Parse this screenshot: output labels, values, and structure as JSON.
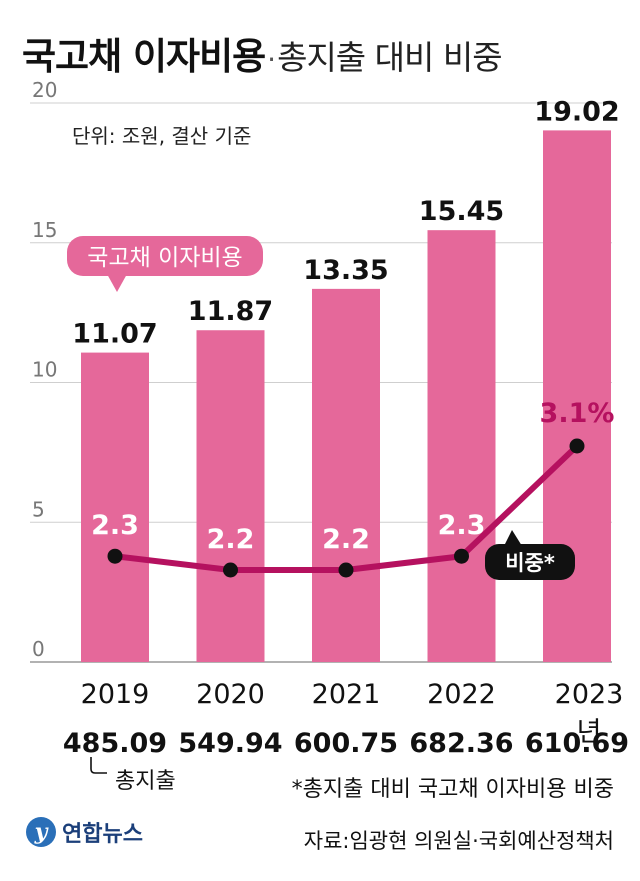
{
  "header": {
    "title_bold": "국고채 이자비용",
    "title_sep": "·",
    "title_rest": "총지출 대비 비중"
  },
  "unit_note": "단위: 조원, 결산 기준",
  "totals_caption": "총지출",
  "footnote": "*총지출 대비 국고채 이자비용 비중",
  "source": "자료:임광현 의원실·국회예산정책처",
  "logo": {
    "text": "연합뉴스",
    "mark": "y"
  },
  "colors": {
    "bar": "#e5689a",
    "line": "#b5115f",
    "gridline": "#cfcfcf",
    "callout_bar": "#e5689a",
    "callout_line": "#111111"
  },
  "chart_data": {
    "type": "bar",
    "categories": [
      "2019",
      "2020",
      "2021",
      "2022",
      "2023년"
    ],
    "ylim": [
      0,
      20
    ],
    "yticks": [
      0,
      5,
      10,
      15,
      20
    ],
    "grid": true,
    "series": [
      {
        "name": "국고채 이자비용",
        "type": "bar",
        "values": [
          11.07,
          11.87,
          13.35,
          15.45,
          19.02
        ],
        "labels": [
          "11.07",
          "11.87",
          "13.35",
          "15.45",
          "19.02"
        ]
      },
      {
        "name": "비중*",
        "type": "line",
        "values": [
          2.3,
          2.2,
          2.2,
          2.3,
          3.1
        ],
        "labels": [
          "2.3",
          "2.2",
          "2.2",
          "2.3",
          "3.1%"
        ]
      }
    ],
    "totals": [
      "485.09",
      "549.94",
      "600.75",
      "682.36",
      "610.69"
    ]
  }
}
